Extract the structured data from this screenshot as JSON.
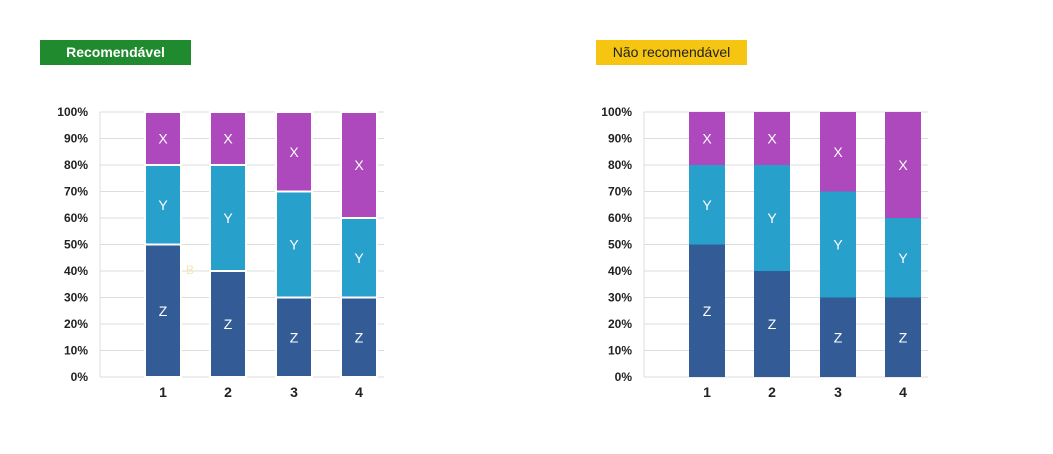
{
  "colors": {
    "good_badge": "#1f8a2e",
    "good_badge_text": "#ffffff",
    "bad_badge": "#f5c511",
    "bad_badge_text": "#222222",
    "Z": "#335c96",
    "Y": "#27a0cc",
    "X": "#ad48bd",
    "grid": "#dddddd"
  },
  "chart_data": [
    {
      "type": "bar",
      "stacked": true,
      "title": "Recomendável",
      "categories": [
        "1",
        "2",
        "3",
        "4"
      ],
      "series": [
        {
          "name": "Z",
          "values": [
            50,
            40,
            30,
            30
          ]
        },
        {
          "name": "Y",
          "values": [
            30,
            40,
            40,
            30
          ]
        },
        {
          "name": "X",
          "values": [
            20,
            20,
            30,
            40
          ]
        }
      ],
      "ylim": [
        0,
        100
      ],
      "yticks": [
        "0%",
        "10%",
        "20%",
        "30%",
        "40%",
        "50%",
        "60%",
        "70%",
        "80%",
        "90%",
        "100%"
      ],
      "grid": true,
      "segment_separators": true,
      "stray_label": "B"
    },
    {
      "type": "bar",
      "stacked": true,
      "title": "Não recomendável",
      "categories": [
        "1",
        "2",
        "3",
        "4"
      ],
      "series": [
        {
          "name": "Z",
          "values": [
            50,
            40,
            30,
            30
          ]
        },
        {
          "name": "Y",
          "values": [
            30,
            40,
            40,
            30
          ]
        },
        {
          "name": "X",
          "values": [
            20,
            20,
            30,
            40
          ]
        }
      ],
      "ylim": [
        0,
        100
      ],
      "yticks": [
        "0%",
        "10%",
        "20%",
        "30%",
        "40%",
        "50%",
        "60%",
        "70%",
        "80%",
        "90%",
        "100%"
      ],
      "grid": true,
      "segment_separators": false
    }
  ]
}
